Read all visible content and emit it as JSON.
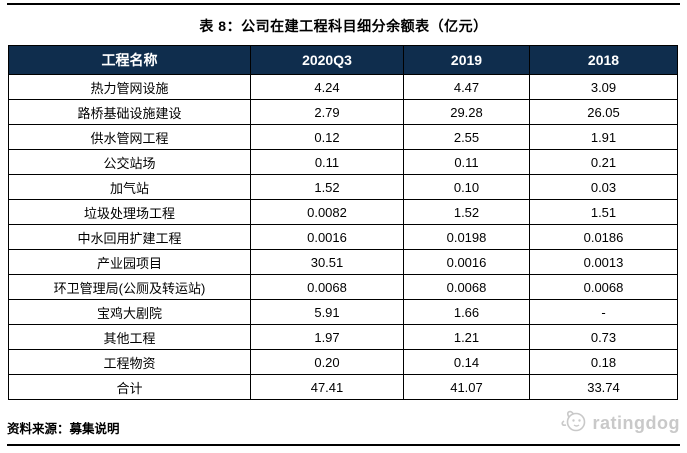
{
  "page": {
    "title": "表 8：公司在建工程科目细分余额表（亿元）",
    "source_note": "资料来源：募集说明",
    "brand": {
      "name": "ratingdog",
      "icon": "dog-face-icon",
      "color": "#c9c9c9"
    }
  },
  "colors": {
    "header_bg": "#0f2d4d",
    "header_text": "#ffffff",
    "border": "#000000"
  },
  "chart_data": {
    "type": "table",
    "title": "表 8：公司在建工程科目细分余额表（亿元）",
    "columns": [
      "工程名称",
      "2020Q3",
      "2019",
      "2018"
    ],
    "rows": [
      [
        "热力管网设施",
        "4.24",
        "4.47",
        "3.09"
      ],
      [
        "路桥基础设施建设",
        "2.79",
        "29.28",
        "26.05"
      ],
      [
        "供水管网工程",
        "0.12",
        "2.55",
        "1.91"
      ],
      [
        "公交站场",
        "0.11",
        "0.11",
        "0.21"
      ],
      [
        "加气站",
        "1.52",
        "0.10",
        "0.03"
      ],
      [
        "垃圾处理场工程",
        "0.0082",
        "1.52",
        "1.51"
      ],
      [
        "中水回用扩建工程",
        "0.0016",
        "0.0198",
        "0.0186"
      ],
      [
        "产业园项目",
        "30.51",
        "0.0016",
        "0.0013"
      ],
      [
        "环卫管理局(公厕及转运站)",
        "0.0068",
        "0.0068",
        "0.0068"
      ],
      [
        "宝鸡大剧院",
        "5.91",
        "1.66",
        "-"
      ],
      [
        "其他工程",
        "1.97",
        "1.21",
        "0.73"
      ],
      [
        "工程物资",
        "0.20",
        "0.14",
        "0.18"
      ],
      [
        "合计",
        "47.41",
        "41.07",
        "33.74"
      ]
    ]
  }
}
